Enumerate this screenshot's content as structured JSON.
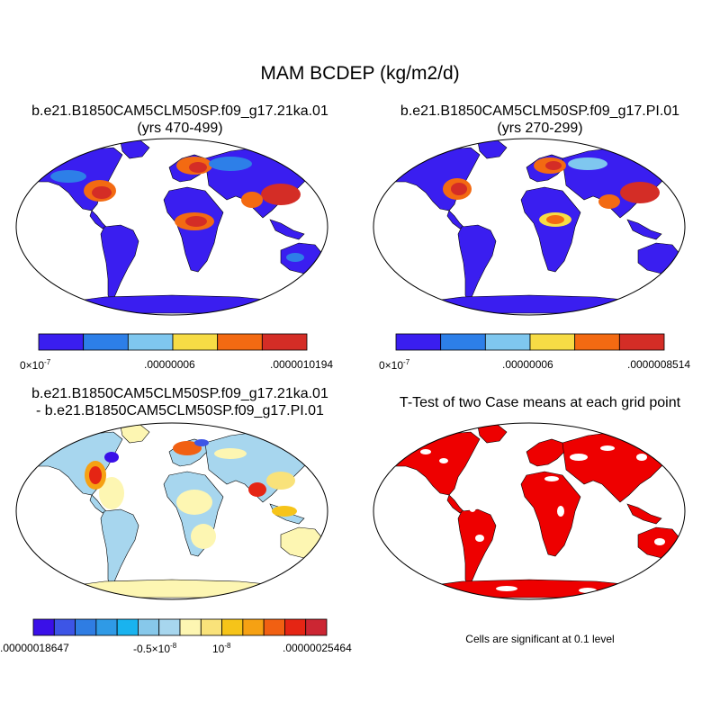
{
  "figure": {
    "title": "MAM BCDEP (kg/m2/d)"
  },
  "panels": [
    {
      "id": "case1",
      "title_line1": "b.e21.B1850CAM5CLM50SP.f09_g17.21ka.01",
      "title_line2": "(yrs 470-499)",
      "colorbar": {
        "colors": [
          "#3a1ef0",
          "#2d7fe8",
          "#7fc7ef",
          "#f7dc45",
          "#f36a12",
          "#d42d26"
        ],
        "labels": [
          "0×10",
          "-7",
          ".00000006",
          ".0000010194"
        ]
      }
    },
    {
      "id": "case2",
      "title_line1": "b.e21.B1850CAM5CLM50SP.f09_g17.PI.01",
      "title_line2": "(yrs 270-299)",
      "colorbar": {
        "colors": [
          "#3a1ef0",
          "#2d7fe8",
          "#7fc7ef",
          "#f7dc45",
          "#f36a12",
          "#d42d26"
        ],
        "labels": [
          "0×10",
          "-7",
          ".00000006",
          ".0000008514"
        ]
      }
    },
    {
      "id": "difference",
      "title_line1": "b.e21.B1850CAM5CLM50SP.f09_g17.21ka.01",
      "title_line2": "- b.e21.B1850CAM5CLM50SP.f09_g17.PI.01",
      "colorbar": {
        "colors": [
          "#3a10e8",
          "#3d55e6",
          "#2f7de3",
          "#2f9ae6",
          "#19b3ef",
          "#87c8ea",
          "#a7d6ee",
          "#fdf6b2",
          "#f9e27a",
          "#f6c419",
          "#f6a113",
          "#f16012",
          "#e52514",
          "#cc2633"
        ],
        "labels": [
          ".00000018647",
          "-0.5×10",
          "-8",
          "10",
          "-8",
          ".00000025464"
        ]
      }
    },
    {
      "id": "ttest",
      "title_line1": "T-Test of two Case means at each grid point",
      "note": "Cells are significant at 0.1 level"
    }
  ]
}
